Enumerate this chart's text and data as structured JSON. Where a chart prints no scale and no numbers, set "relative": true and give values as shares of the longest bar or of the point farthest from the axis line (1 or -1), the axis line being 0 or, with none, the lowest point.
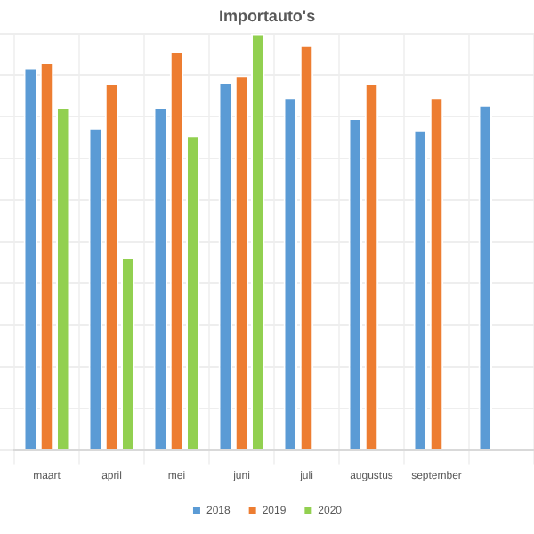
{
  "chart_data": {
    "type": "bar",
    "title": "Importauto's",
    "relative": true,
    "grid": true,
    "legend": "bottom",
    "categories": [
      "maart",
      "april",
      "mei",
      "juni",
      "juli",
      "augustus",
      "september",
      null
    ],
    "series": [
      {
        "name": "2018",
        "color": "#5b9bd5",
        "values": [
          0.917,
          0.773,
          0.824,
          0.884,
          0.847,
          0.796,
          0.769,
          0.829
        ]
      },
      {
        "name": "2019",
        "color": "#ed7d31",
        "values": [
          0.931,
          0.88,
          0.958,
          0.898,
          0.972,
          0.88,
          0.847,
          null
        ]
      },
      {
        "name": "2020",
        "color": "#92d050",
        "values": [
          0.824,
          0.463,
          0.755,
          1,
          null,
          null,
          null,
          null
        ]
      }
    ]
  }
}
